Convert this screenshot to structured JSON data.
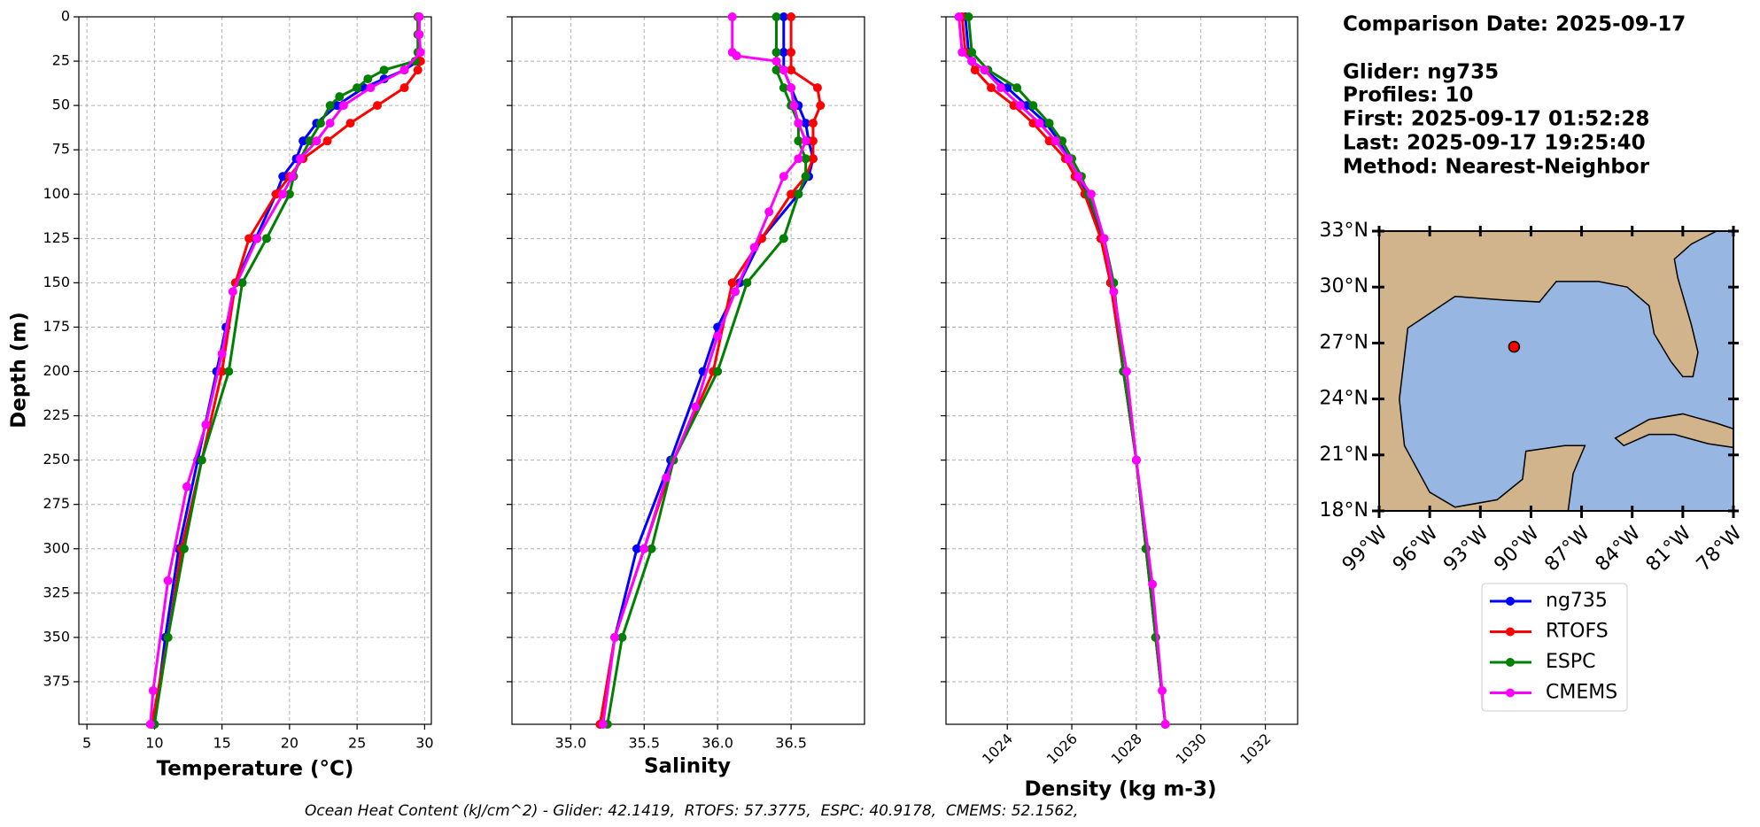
{
  "chart_data": [
    {
      "type": "line",
      "xlabel": "Temperature (°C)",
      "ylabel": "Depth (m)",
      "xlim": [
        4.4,
        30.5
      ],
      "xticks": [
        5,
        10,
        15,
        20,
        25,
        30
      ],
      "ylim": [
        399,
        0
      ],
      "yticks": [
        0,
        25,
        50,
        75,
        100,
        125,
        150,
        175,
        200,
        225,
        250,
        275,
        300,
        325,
        350,
        375
      ],
      "grid": true,
      "series": [
        {
          "name": "ng735",
          "color": "#0000ff",
          "values": [
            0,
            10,
            20,
            25,
            30,
            35,
            40,
            50,
            60,
            70,
            80,
            90,
            100,
            125,
            150,
            175,
            200,
            250,
            300,
            350,
            399
          ],
          "x": [
            29.6,
            29.6,
            29.6,
            29.5,
            28.5,
            27,
            25.5,
            23.5,
            22,
            21,
            20.5,
            19.5,
            19,
            17.5,
            16,
            15.3,
            14.6,
            13.2,
            11.8,
            10.8,
            10.0
          ]
        },
        {
          "name": "RTOFS",
          "color": "#ff0000",
          "values": [
            0,
            10,
            20,
            25,
            30,
            40,
            50,
            60,
            70,
            80,
            90,
            100,
            125,
            150,
            200,
            250,
            300,
            350,
            399
          ],
          "x": [
            29.5,
            29.5,
            29.6,
            29.7,
            29.5,
            28.5,
            26.5,
            24.5,
            22.8,
            21,
            20,
            19,
            17,
            16,
            15,
            13.5,
            12,
            11,
            9.8
          ]
        },
        {
          "name": "ESPC",
          "color": "#008000",
          "values": [
            0,
            10,
            20,
            25,
            30,
            35,
            40,
            45,
            50,
            60,
            70,
            80,
            90,
            100,
            125,
            150,
            200,
            250,
            300,
            350,
            399
          ],
          "x": [
            29.5,
            29.5,
            29.5,
            29.3,
            27,
            25.8,
            25,
            23.7,
            23,
            22.3,
            21.5,
            20.8,
            20.3,
            20,
            18.3,
            16.5,
            15.5,
            13.5,
            12.2,
            11,
            10
          ]
        },
        {
          "name": "CMEMS",
          "color": "#ff00ff",
          "values": [
            0,
            10,
            20,
            30,
            40,
            50,
            60,
            70,
            80,
            90,
            100,
            125,
            155,
            190,
            230,
            265,
            318,
            380,
            399
          ],
          "x": [
            29.6,
            29.6,
            29.7,
            28.5,
            26,
            24,
            23,
            22,
            20.8,
            20.2,
            19.5,
            17.6,
            15.8,
            15,
            13.8,
            12.4,
            11,
            9.9,
            9.7
          ]
        }
      ]
    },
    {
      "type": "line",
      "xlabel": "Salinity",
      "xlim": [
        34.6,
        37.0
      ],
      "xticks": [
        {
          "value": 35,
          "label": "35.0"
        },
        35.5,
        {
          "value": 36,
          "label": "36.0"
        },
        36.5
      ],
      "grid": true,
      "series": [
        {
          "values": [
            0,
            20,
            30,
            40,
            50,
            60,
            70,
            80,
            90,
            100,
            125,
            150,
            175,
            200,
            250,
            300,
            350,
            399
          ],
          "x": [
            36.45,
            36.45,
            36.45,
            36.5,
            36.55,
            36.6,
            36.62,
            36.65,
            36.62,
            36.55,
            36.3,
            36.15,
            36.0,
            35.9,
            35.68,
            35.45,
            35.3,
            35.2
          ]
        },
        {
          "values": [
            0,
            20,
            30,
            40,
            50,
            60,
            70,
            80,
            90,
            100,
            125,
            150,
            200,
            250,
            300,
            350,
            399
          ],
          "x": [
            36.5,
            36.5,
            36.5,
            36.68,
            36.7,
            36.65,
            36.65,
            36.65,
            36.6,
            36.5,
            36.3,
            36.1,
            35.97,
            35.7,
            35.5,
            35.3,
            35.2
          ]
        },
        {
          "values": [
            0,
            20,
            30,
            40,
            50,
            60,
            70,
            80,
            90,
            100,
            125,
            150,
            200,
            250,
            300,
            350,
            399
          ],
          "x": [
            36.4,
            36.4,
            36.4,
            36.45,
            36.5,
            36.55,
            36.55,
            36.6,
            36.6,
            36.55,
            36.45,
            36.2,
            36.0,
            35.7,
            35.55,
            35.35,
            35.25
          ]
        },
        {
          "values": [
            0,
            20,
            22,
            25,
            30,
            40,
            50,
            60,
            70,
            80,
            90,
            110,
            130,
            155,
            180,
            220,
            260,
            300,
            350,
            399
          ],
          "x": [
            36.1,
            36.1,
            36.13,
            36.4,
            36.45,
            36.5,
            36.52,
            36.55,
            36.6,
            36.55,
            36.45,
            36.35,
            36.25,
            36.12,
            36.0,
            35.85,
            35.65,
            35.5,
            35.3,
            35.22
          ]
        }
      ]
    },
    {
      "type": "line",
      "xlabel": "Density (kg m-3)",
      "xlim": [
        1022.1,
        1033
      ],
      "xticks": [
        1024,
        1026,
        1028,
        1030,
        1032
      ],
      "grid": true,
      "series": [
        {
          "values": [
            0,
            20,
            25,
            30,
            40,
            50,
            60,
            70,
            80,
            90,
            100,
            125,
            150,
            200,
            250,
            300,
            350,
            399
          ],
          "x": [
            1022.7,
            1022.8,
            1022.9,
            1023.3,
            1024,
            1024.6,
            1025.2,
            1025.6,
            1025.9,
            1026.2,
            1026.5,
            1026.9,
            1027.2,
            1027.6,
            1028,
            1028.3,
            1028.6,
            1028.9
          ]
        },
        {
          "values": [
            0,
            20,
            30,
            40,
            50,
            60,
            70,
            80,
            90,
            100,
            125,
            150,
            200,
            250,
            300,
            350,
            399
          ],
          "x": [
            1022.6,
            1022.7,
            1023,
            1023.5,
            1024.2,
            1024.8,
            1025.3,
            1025.8,
            1026.1,
            1026.4,
            1026.9,
            1027.2,
            1027.6,
            1028,
            1028.3,
            1028.6,
            1028.9
          ]
        },
        {
          "values": [
            0,
            20,
            30,
            40,
            50,
            60,
            70,
            80,
            90,
            100,
            125,
            150,
            200,
            250,
            300,
            350,
            399
          ],
          "x": [
            1022.8,
            1022.9,
            1023.4,
            1024.3,
            1024.8,
            1025.3,
            1025.7,
            1026,
            1026.3,
            1026.5,
            1027,
            1027.3,
            1027.6,
            1028,
            1028.3,
            1028.6,
            1028.9
          ]
        },
        {
          "values": [
            0,
            20,
            25,
            30,
            40,
            50,
            60,
            70,
            80,
            90,
            100,
            125,
            155,
            200,
            250,
            320,
            380,
            399
          ],
          "x": [
            1022.5,
            1022.6,
            1022.9,
            1023.3,
            1023.8,
            1024.4,
            1025,
            1025.5,
            1025.9,
            1026.2,
            1026.6,
            1027,
            1027.3,
            1027.7,
            1028,
            1028.5,
            1028.8,
            1028.9
          ]
        }
      ]
    },
    {
      "type": "map",
      "xlim": [
        -99,
        -78
      ],
      "ylim": [
        18,
        33
      ],
      "xticks": [
        {
          "value": -99,
          "label": "99°W"
        },
        {
          "value": -96,
          "label": "96°W"
        },
        {
          "value": -93,
          "label": "93°W"
        },
        {
          "value": -90,
          "label": "90°W"
        },
        {
          "value": -87,
          "label": "87°W"
        },
        {
          "value": -84,
          "label": "84°W"
        },
        {
          "value": -81,
          "label": "81°W"
        },
        {
          "value": -78,
          "label": "78°W"
        }
      ],
      "yticks": [
        {
          "value": 18,
          "label": "18°N"
        },
        {
          "value": 21,
          "label": "21°N"
        },
        {
          "value": 24,
          "label": "24°N"
        },
        {
          "value": 27,
          "label": "27°N"
        },
        {
          "value": 30,
          "label": "30°N"
        },
        {
          "value": 33,
          "label": "33°N"
        }
      ],
      "x": [
        -91.0
      ],
      "values": [
        26.8
      ],
      "color": "#ff0000"
    }
  ],
  "info": [
    "Comparison Date: 2025-09-17",
    "Glider: ng735",
    "Profiles: 10",
    "First: 2025-09-17 01:52:28",
    "Last: 2025-09-17 19:25:40",
    "Method: Nearest-Neighbor"
  ],
  "footer": "Ocean Heat Content (kJ/cm^2) - Glider: 42.1419,  RTOFS: 57.3775,  ESPC: 40.9178,  CMEMS: 52.1562,"
}
